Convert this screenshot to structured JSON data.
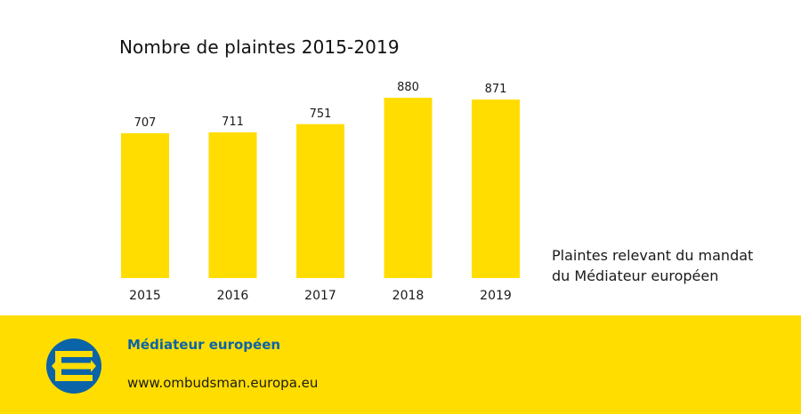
{
  "chart_data": {
    "type": "bar",
    "title": "Nombre de plaintes 2015-2019",
    "categories": [
      "2015",
      "2016",
      "2017",
      "2018",
      "2019"
    ],
    "values": [
      707,
      711,
      751,
      880,
      871
    ],
    "value_labels": [
      "707",
      "711",
      "751",
      "880",
      "871"
    ],
    "ylim": [
      0,
      900
    ],
    "grid": false,
    "bar_color": "#ffdd00",
    "legend": {
      "line1": "Plaintes relevant du mandat",
      "line2": "du Médiateur européen",
      "placement": "right"
    }
  },
  "footer": {
    "org_name": "Médiateur européen",
    "url": "www.ombudsman.europa.eu",
    "background": "#ffdd00",
    "brand_color": "#0b63a8",
    "logo_icon": "ombudsman-logo-icon"
  }
}
